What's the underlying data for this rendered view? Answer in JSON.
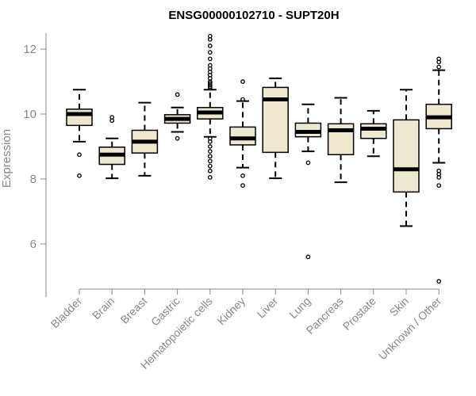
{
  "chart_data": {
    "type": "box",
    "title": "ENSG00000102710 - SUPT20H",
    "xlabel": "",
    "ylabel": "Expression",
    "ylim": [
      4.8,
      12.5
    ],
    "yticks": [
      6,
      8,
      10,
      12
    ],
    "colors": {
      "box_fill": "#efe8d0",
      "stroke": "#000000",
      "axis": "#888888"
    },
    "categories": [
      "Bladder",
      "Brain",
      "Breast",
      "Gastric",
      "Hematopoietic cells",
      "Kidney",
      "Liver",
      "Lung",
      "Pancreas",
      "Prostate",
      "Skin",
      "Unknown / Other"
    ],
    "boxes": [
      {
        "name": "Bladder",
        "whisker_low": 9.15,
        "q1": 9.65,
        "median": 10.0,
        "q3": 10.15,
        "whisker_high": 10.75,
        "outliers": [
          8.75,
          8.1
        ]
      },
      {
        "name": "Brain",
        "whisker_low": 8.02,
        "q1": 8.45,
        "median": 8.75,
        "q3": 8.98,
        "whisker_high": 9.25,
        "outliers": [
          9.8,
          9.9
        ]
      },
      {
        "name": "Breast",
        "whisker_low": 8.1,
        "q1": 8.8,
        "median": 9.15,
        "q3": 9.5,
        "whisker_high": 10.35,
        "outliers": []
      },
      {
        "name": "Gastric",
        "whisker_low": 9.45,
        "q1": 9.72,
        "median": 9.85,
        "q3": 9.98,
        "whisker_high": 10.2,
        "outliers": [
          10.6,
          9.25
        ]
      },
      {
        "name": "Hematopoietic cells",
        "whisker_low": 9.3,
        "q1": 9.85,
        "median": 10.05,
        "q3": 10.2,
        "whisker_high": 10.75,
        "outliers": [
          12.4,
          12.3,
          12.1,
          11.9,
          11.7,
          11.5,
          11.4,
          11.3,
          11.2,
          11.1,
          11.0,
          10.95,
          10.9,
          10.85,
          10.8,
          9.25,
          9.15,
          9.0,
          8.85,
          8.7,
          8.55,
          8.4,
          8.25,
          8.05
        ]
      },
      {
        "name": "Kidney",
        "whisker_low": 8.35,
        "q1": 9.05,
        "median": 9.25,
        "q3": 9.6,
        "whisker_high": 10.4,
        "outliers": [
          11.0,
          10.45,
          8.1,
          7.8
        ]
      },
      {
        "name": "Liver",
        "whisker_low": 8.02,
        "q1": 8.82,
        "median": 10.45,
        "q3": 10.82,
        "whisker_high": 11.1,
        "outliers": []
      },
      {
        "name": "Lung",
        "whisker_low": 8.85,
        "q1": 9.3,
        "median": 9.45,
        "q3": 9.72,
        "whisker_high": 10.3,
        "outliers": [
          8.5,
          5.6
        ]
      },
      {
        "name": "Pancreas",
        "whisker_low": 7.9,
        "q1": 8.75,
        "median": 9.5,
        "q3": 9.7,
        "whisker_high": 10.5,
        "outliers": []
      },
      {
        "name": "Prostate",
        "whisker_low": 8.7,
        "q1": 9.25,
        "median": 9.55,
        "q3": 9.7,
        "whisker_high": 10.1,
        "outliers": []
      },
      {
        "name": "Skin",
        "whisker_low": 6.55,
        "q1": 7.6,
        "median": 8.3,
        "q3": 9.82,
        "whisker_high": 10.75,
        "outliers": []
      },
      {
        "name": "Unknown / Other",
        "whisker_low": 8.5,
        "q1": 9.55,
        "median": 9.9,
        "q3": 10.3,
        "whisker_high": 11.35,
        "outliers": [
          11.7,
          11.6,
          11.45,
          8.25,
          8.15,
          8.05,
          7.8,
          4.85
        ]
      }
    ]
  }
}
